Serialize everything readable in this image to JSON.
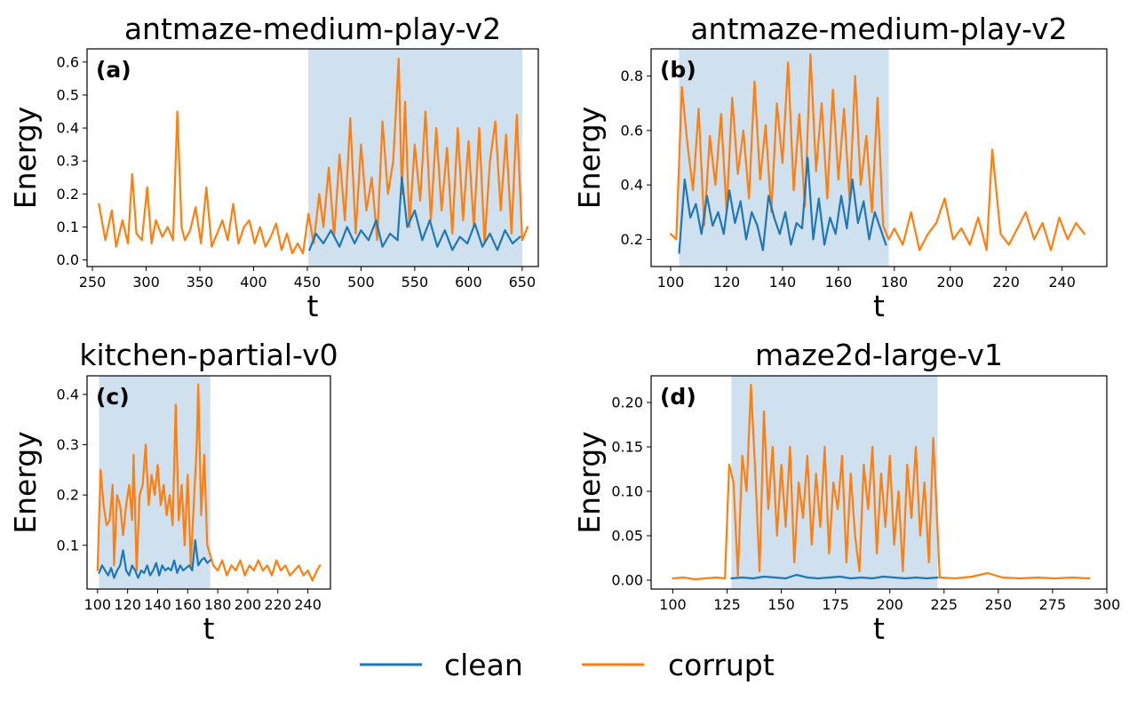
{
  "colors": {
    "clean": "#1f77b4",
    "corrupt": "#ff7f0e",
    "shade": "#cfe0ee"
  },
  "legend": [
    {
      "name": "clean",
      "color": "#1f77b4"
    },
    {
      "name": "corrupt",
      "color": "#ff7f0e"
    }
  ],
  "chart_data": [
    {
      "type": "line",
      "panel_label": "(a)",
      "title": "antmaze-medium-play-v2",
      "xlabel": "t",
      "ylabel": "Energy",
      "xlim": [
        245,
        665
      ],
      "ylim": [
        -0.02,
        0.64
      ],
      "xticks": [
        250,
        300,
        350,
        400,
        450,
        500,
        550,
        600,
        650
      ],
      "yticks": [
        0.0,
        0.1,
        0.2,
        0.3,
        0.4,
        0.5,
        0.6
      ],
      "ytick_decimals": 1,
      "shaded_region": [
        451,
        650
      ],
      "series": [
        {
          "name": "corrupt",
          "x": [
            256,
            262,
            268,
            272,
            278,
            283,
            287,
            291,
            296,
            301,
            305,
            309,
            315,
            320,
            325,
            329,
            331,
            333,
            336,
            341,
            346,
            351,
            356,
            361,
            366,
            371,
            376,
            381,
            386,
            391,
            396,
            401,
            406,
            411,
            416,
            421,
            426,
            431,
            436,
            441,
            446,
            451,
            456,
            461,
            465,
            470,
            475,
            480,
            485,
            490,
            495,
            500,
            505,
            510,
            515,
            520,
            525,
            530,
            535,
            538,
            541,
            545,
            550,
            555,
            560,
            565,
            570,
            575,
            580,
            585,
            590,
            595,
            600,
            605,
            610,
            615,
            620,
            625,
            630,
            635,
            640,
            645,
            650,
            655
          ],
          "y": [
            0.17,
            0.06,
            0.15,
            0.04,
            0.12,
            0.05,
            0.26,
            0.08,
            0.06,
            0.22,
            0.05,
            0.12,
            0.07,
            0.1,
            0.06,
            0.45,
            0.28,
            0.1,
            0.06,
            0.09,
            0.16,
            0.05,
            0.22,
            0.04,
            0.08,
            0.12,
            0.06,
            0.17,
            0.05,
            0.1,
            0.12,
            0.05,
            0.1,
            0.04,
            0.07,
            0.11,
            0.03,
            0.08,
            0.02,
            0.05,
            0.02,
            0.14,
            0.05,
            0.2,
            0.1,
            0.28,
            0.07,
            0.32,
            0.12,
            0.43,
            0.08,
            0.35,
            0.15,
            0.25,
            0.06,
            0.42,
            0.2,
            0.3,
            0.61,
            0.2,
            0.48,
            0.1,
            0.35,
            0.18,
            0.45,
            0.12,
            0.4,
            0.15,
            0.34,
            0.08,
            0.4,
            0.12,
            0.36,
            0.1,
            0.4,
            0.05,
            0.3,
            0.42,
            0.15,
            0.38,
            0.08,
            0.44,
            0.06,
            0.1
          ]
        },
        {
          "name": "clean",
          "x": [
            452,
            458,
            465,
            472,
            480,
            487,
            494,
            500,
            507,
            514,
            520,
            527,
            534,
            538,
            543,
            550,
            557,
            564,
            571,
            578,
            585,
            592,
            599,
            606,
            613,
            620,
            627,
            634,
            641,
            648
          ],
          "y": [
            0.03,
            0.08,
            0.05,
            0.09,
            0.04,
            0.1,
            0.05,
            0.09,
            0.06,
            0.12,
            0.04,
            0.08,
            0.06,
            0.25,
            0.1,
            0.15,
            0.06,
            0.12,
            0.04,
            0.09,
            0.03,
            0.07,
            0.05,
            0.11,
            0.04,
            0.08,
            0.03,
            0.09,
            0.05,
            0.07
          ]
        }
      ]
    },
    {
      "type": "line",
      "panel_label": "(b)",
      "title": "antmaze-medium-play-v2",
      "xlabel": "t",
      "ylabel": "Energy",
      "xlim": [
        93,
        256
      ],
      "ylim": [
        0.1,
        0.9
      ],
      "xticks": [
        100,
        120,
        140,
        160,
        180,
        200,
        220,
        240
      ],
      "yticks": [
        0.2,
        0.4,
        0.6,
        0.8
      ],
      "ytick_decimals": 1,
      "shaded_region": [
        103,
        178
      ],
      "series": [
        {
          "name": "corrupt",
          "x": [
            100,
            102,
            104,
            106,
            108,
            110,
            112,
            114,
            116,
            118,
            120,
            122,
            124,
            126,
            128,
            130,
            132,
            134,
            136,
            138,
            140,
            142,
            144,
            146,
            148,
            150,
            152,
            154,
            156,
            158,
            160,
            162,
            164,
            166,
            168,
            170,
            172,
            174,
            176,
            178,
            180,
            183,
            186,
            189,
            192,
            195,
            198,
            201,
            204,
            207,
            210,
            213,
            215,
            218,
            221,
            224,
            227,
            230,
            233,
            236,
            239,
            242,
            245,
            248
          ],
          "y": [
            0.22,
            0.2,
            0.76,
            0.55,
            0.38,
            0.68,
            0.25,
            0.58,
            0.4,
            0.66,
            0.3,
            0.72,
            0.44,
            0.6,
            0.35,
            0.78,
            0.42,
            0.62,
            0.3,
            0.7,
            0.48,
            0.85,
            0.38,
            0.66,
            0.32,
            0.88,
            0.45,
            0.7,
            0.35,
            0.75,
            0.42,
            0.68,
            0.34,
            0.8,
            0.4,
            0.58,
            0.3,
            0.72,
            0.25,
            0.2,
            0.24,
            0.18,
            0.3,
            0.16,
            0.22,
            0.26,
            0.35,
            0.2,
            0.24,
            0.18,
            0.28,
            0.16,
            0.53,
            0.22,
            0.18,
            0.24,
            0.3,
            0.2,
            0.26,
            0.16,
            0.28,
            0.2,
            0.26,
            0.22
          ]
        },
        {
          "name": "clean",
          "x": [
            103,
            105,
            107,
            109,
            111,
            113,
            115,
            117,
            119,
            121,
            123,
            125,
            127,
            129,
            131,
            133,
            135,
            137,
            139,
            141,
            143,
            145,
            147,
            149,
            151,
            153,
            155,
            157,
            159,
            161,
            163,
            165,
            167,
            169,
            171,
            173,
            175,
            177
          ],
          "y": [
            0.15,
            0.42,
            0.28,
            0.33,
            0.22,
            0.36,
            0.25,
            0.3,
            0.22,
            0.38,
            0.26,
            0.34,
            0.2,
            0.3,
            0.25,
            0.16,
            0.36,
            0.28,
            0.22,
            0.3,
            0.18,
            0.26,
            0.24,
            0.5,
            0.2,
            0.35,
            0.18,
            0.28,
            0.22,
            0.36,
            0.24,
            0.42,
            0.26,
            0.34,
            0.2,
            0.3,
            0.24,
            0.18
          ]
        }
      ]
    },
    {
      "type": "line",
      "panel_label": "(c)",
      "title": "kitchen-partial-v0",
      "xlabel": "t",
      "ylabel": "Energy",
      "xlim": [
        93,
        255
      ],
      "ylim": [
        0.013,
        0.437
      ],
      "xticks": [
        100,
        120,
        140,
        160,
        180,
        200,
        220,
        240
      ],
      "yticks": [
        0.1,
        0.2,
        0.3,
        0.4
      ],
      "ytick_decimals": 1,
      "shaded_region": [
        101,
        175
      ],
      "series": [
        {
          "name": "corrupt",
          "x": [
            100,
            102,
            104,
            106,
            108,
            110,
            111,
            113,
            115,
            117,
            119,
            121,
            123,
            124,
            126,
            128,
            130,
            132,
            134,
            136,
            138,
            140,
            142,
            144,
            146,
            148,
            150,
            152,
            154,
            156,
            158,
            160,
            162,
            164,
            166,
            167,
            169,
            171,
            173,
            175,
            177,
            180,
            183,
            186,
            189,
            192,
            195,
            198,
            201,
            204,
            207,
            210,
            213,
            216,
            219,
            222,
            225,
            228,
            231,
            234,
            237,
            240,
            243,
            246,
            248
          ],
          "y": [
            0.05,
            0.25,
            0.18,
            0.14,
            0.15,
            0.22,
            0.06,
            0.2,
            0.18,
            0.12,
            0.18,
            0.22,
            0.15,
            0.28,
            0.05,
            0.2,
            0.22,
            0.3,
            0.18,
            0.24,
            0.2,
            0.26,
            0.18,
            0.22,
            0.16,
            0.2,
            0.14,
            0.38,
            0.15,
            0.22,
            0.1,
            0.24,
            0.06,
            0.18,
            0.3,
            0.42,
            0.16,
            0.28,
            0.1,
            0.08,
            0.06,
            0.05,
            0.07,
            0.04,
            0.06,
            0.05,
            0.07,
            0.04,
            0.06,
            0.05,
            0.07,
            0.05,
            0.06,
            0.04,
            0.07,
            0.05,
            0.06,
            0.04,
            0.05,
            0.06,
            0.04,
            0.05,
            0.03,
            0.05,
            0.06
          ]
        },
        {
          "name": "clean",
          "x": [
            101,
            103,
            105,
            107,
            109,
            111,
            113,
            115,
            117,
            119,
            121,
            123,
            125,
            127,
            129,
            131,
            133,
            135,
            137,
            139,
            141,
            143,
            145,
            147,
            149,
            151,
            153,
            155,
            157,
            159,
            161,
            163,
            165,
            167,
            169,
            171,
            173,
            175
          ],
          "y": [
            0.045,
            0.06,
            0.05,
            0.04,
            0.055,
            0.035,
            0.05,
            0.06,
            0.09,
            0.05,
            0.04,
            0.06,
            0.05,
            0.035,
            0.05,
            0.045,
            0.06,
            0.04,
            0.05,
            0.065,
            0.04,
            0.06,
            0.05,
            0.055,
            0.05,
            0.07,
            0.045,
            0.06,
            0.05,
            0.055,
            0.06,
            0.05,
            0.11,
            0.06,
            0.07,
            0.075,
            0.065,
            0.07
          ]
        }
      ]
    },
    {
      "type": "line",
      "panel_label": "(d)",
      "title": "maze2d-large-v1",
      "xlabel": "t",
      "ylabel": "Energy",
      "xlim": [
        90,
        300
      ],
      "ylim": [
        -0.01,
        0.23
      ],
      "xticks": [
        100,
        125,
        150,
        175,
        200,
        225,
        250,
        275,
        300
      ],
      "yticks": [
        0.0,
        0.05,
        0.1,
        0.15,
        0.2
      ],
      "ytick_decimals": 2,
      "shaded_region": [
        127,
        222
      ],
      "series": [
        {
          "name": "corrupt",
          "x": [
            100,
            105,
            110,
            115,
            120,
            124,
            126,
            128,
            130,
            132,
            134,
            136,
            138,
            140,
            142,
            144,
            146,
            148,
            150,
            152,
            154,
            156,
            158,
            160,
            162,
            164,
            166,
            168,
            170,
            172,
            174,
            176,
            178,
            180,
            182,
            184,
            186,
            188,
            190,
            192,
            194,
            196,
            198,
            200,
            202,
            204,
            206,
            208,
            210,
            212,
            214,
            216,
            218,
            220,
            221,
            223,
            230,
            238,
            245,
            252,
            260,
            268,
            276,
            284,
            292
          ],
          "y": [
            0.002,
            0.003,
            0.001,
            0.002,
            0.003,
            0.002,
            0.13,
            0.11,
            0.005,
            0.14,
            0.1,
            0.22,
            0.12,
            0.01,
            0.19,
            0.08,
            0.15,
            0.05,
            0.13,
            0.06,
            0.15,
            0.02,
            0.11,
            0.07,
            0.14,
            0.04,
            0.12,
            0.06,
            0.15,
            0.03,
            0.11,
            0.08,
            0.14,
            0.02,
            0.12,
            0.05,
            0.01,
            0.13,
            0.08,
            0.15,
            0.03,
            0.12,
            0.06,
            0.14,
            0.04,
            0.1,
            0.01,
            0.13,
            0.07,
            0.15,
            0.05,
            0.11,
            0.02,
            0.16,
            0.11,
            0.003,
            0.002,
            0.004,
            0.008,
            0.003,
            0.002,
            0.003,
            0.002,
            0.003,
            0.002
          ]
        },
        {
          "name": "clean",
          "x": [
            127,
            132,
            137,
            142,
            147,
            152,
            157,
            162,
            167,
            172,
            177,
            182,
            187,
            192,
            197,
            202,
            207,
            212,
            217,
            222
          ],
          "y": [
            0.002,
            0.003,
            0.002,
            0.004,
            0.003,
            0.002,
            0.006,
            0.003,
            0.002,
            0.003,
            0.004,
            0.002,
            0.003,
            0.002,
            0.004,
            0.003,
            0.002,
            0.003,
            0.002,
            0.003
          ]
        }
      ]
    }
  ]
}
